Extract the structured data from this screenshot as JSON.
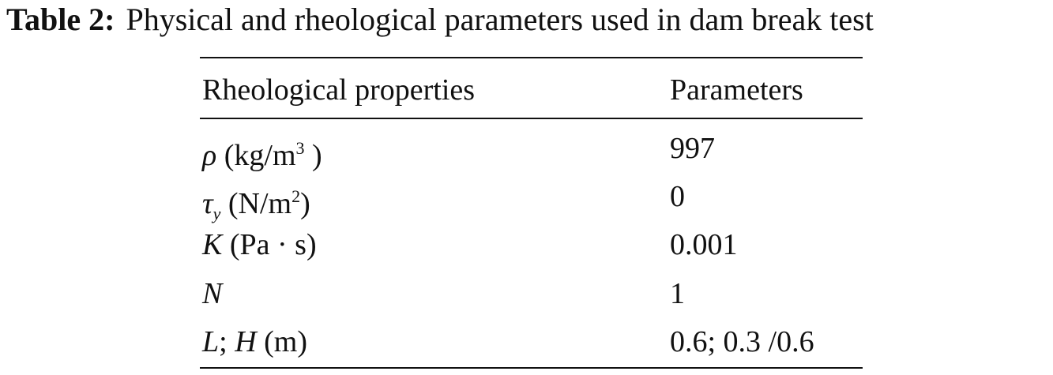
{
  "caption": {
    "label": "Table 2:",
    "text": "Physical and rheological parameters used in dam break test"
  },
  "table": {
    "header": [
      "Rheological properties",
      "Parameters"
    ],
    "rows": [
      [
        [
          "ρ",
          " (kg/m",
          "3",
          " )"
        ],
        "997"
      ],
      [
        [
          "τ",
          "y",
          " (N/m",
          "2",
          ")"
        ],
        "0"
      ],
      [
        [
          "K",
          " (Pa · s)"
        ],
        "0.001"
      ],
      [
        [
          "N"
        ],
        "1"
      ],
      [
        [
          "L",
          "; ",
          "H",
          " (m)"
        ],
        "0.6; 0.3 /0.6"
      ]
    ]
  }
}
